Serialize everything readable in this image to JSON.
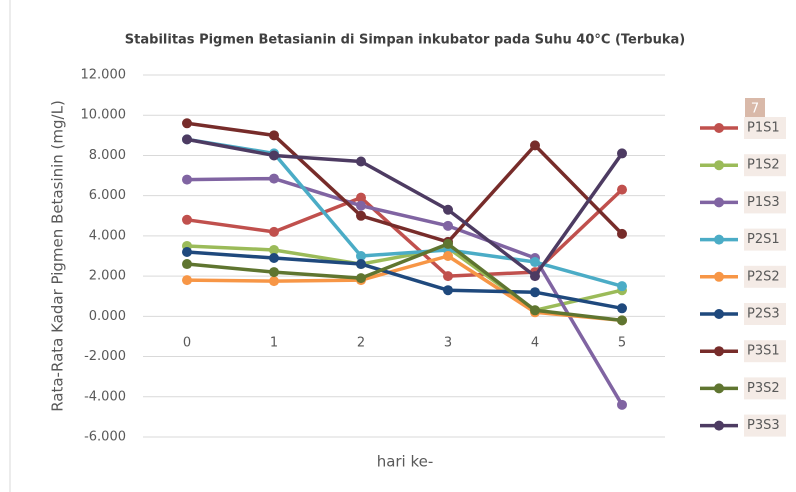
{
  "chart_data": {
    "type": "line",
    "title": "Stabilitas Pigmen Betasianin di Simpan inkubator pada Suhu 40°C (Terbuka)",
    "x_label": "hari ke-",
    "y_label": "Rata-Rata Kadar Pigmen Betasinin  (mg/L)",
    "annotation": "7",
    "categories": [
      "0",
      "1",
      "2",
      "3",
      "4",
      "5"
    ],
    "series": [
      {
        "name": "P1S1",
        "color": "#c0504d",
        "values": [
          4.8,
          4.2,
          5.9,
          2.0,
          2.2,
          6.3
        ]
      },
      {
        "name": "P1S2",
        "color": "#9bbb59",
        "values": [
          3.5,
          3.3,
          2.6,
          3.4,
          0.3,
          1.3
        ]
      },
      {
        "name": "P1S3",
        "color": "#8064a2",
        "values": [
          6.8,
          6.85,
          5.5,
          4.5,
          2.9,
          -4.4
        ]
      },
      {
        "name": "P2S1",
        "color": "#4bacc6",
        "values": [
          8.8,
          8.1,
          3.0,
          3.3,
          2.7,
          1.5
        ]
      },
      {
        "name": "P2S2",
        "color": "#f79646",
        "values": [
          1.8,
          1.75,
          1.8,
          3.0,
          0.2,
          -0.2
        ]
      },
      {
        "name": "P2S3",
        "color": "#1f497d",
        "values": [
          3.2,
          2.9,
          2.6,
          1.3,
          1.2,
          0.4
        ]
      },
      {
        "name": "P3S1",
        "color": "#772c2a",
        "values": [
          9.6,
          9.0,
          5.0,
          3.7,
          8.5,
          4.1
        ]
      },
      {
        "name": "P3S2",
        "color": "#5f7530",
        "values": [
          2.6,
          2.2,
          1.9,
          3.6,
          0.3,
          -0.2
        ]
      },
      {
        "name": "P3S3",
        "color": "#4d3b62",
        "values": [
          8.8,
          8.0,
          7.7,
          5.3,
          2.0,
          8.1
        ]
      }
    ],
    "ylim": [
      -6,
      12
    ],
    "yticks": [
      {
        "value": -6,
        "label": "-6.000"
      },
      {
        "value": -4,
        "label": "-4.000"
      },
      {
        "value": -2,
        "label": "-2.000"
      },
      {
        "value": 0,
        "label": "0.000"
      },
      {
        "value": 2,
        "label": "2.000"
      },
      {
        "value": 4,
        "label": "4.000"
      },
      {
        "value": 6,
        "label": "6.000"
      },
      {
        "value": 8,
        "label": "8.000"
      },
      {
        "value": 10,
        "label": "10.000"
      },
      {
        "value": 12,
        "label": "12.000"
      }
    ],
    "grid": true,
    "legend": "right"
  }
}
